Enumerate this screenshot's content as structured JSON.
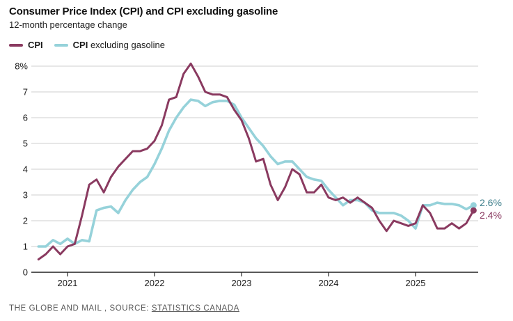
{
  "title": "Consumer Price Index (CPI) and CPI excluding gasoline",
  "subtitle": "12-month percentage change",
  "legend": {
    "items": [
      {
        "label_bold": "CPI",
        "label_rest": "",
        "color": "#8a3a60"
      },
      {
        "label_bold": "CPI",
        "label_rest": " excluding gasoline",
        "color": "#96d2da"
      }
    ]
  },
  "footer": {
    "prefix": "THE GLOBE AND MAIL , SOURCE: ",
    "source_link": "STATISTICS CANADA"
  },
  "chart_data": {
    "type": "line",
    "title": "Consumer Price Index (CPI) and CPI excluding gasoline",
    "subtitle": "12-month percentage change",
    "x_unit": "month",
    "x_start": "2020-09",
    "x_end": "2025-09",
    "x_tick_labels": [
      "2021",
      "2022",
      "2023",
      "2024",
      "2025"
    ],
    "x_tick_month_index": [
      4,
      16,
      28,
      40,
      52
    ],
    "y_ticks": [
      0,
      1,
      2,
      3,
      4,
      5,
      6,
      7,
      8
    ],
    "y_tick_top_label": "8%",
    "ylim": [
      0,
      8.4
    ],
    "grid": "horizontal",
    "legend_position": "top-left",
    "colors": {
      "cpi": "#8a3a60",
      "cpi_ex_gasoline": "#96d2da",
      "annotation_teal_text": "#3f7f8c",
      "annotation_maroon_text": "#8a3a60",
      "gridline": "#cfcfcf",
      "axis": "#222222"
    },
    "series": [
      {
        "name": "CPI",
        "color": "#8a3a60",
        "values": [
          0.5,
          0.7,
          1.0,
          0.7,
          1.0,
          1.1,
          2.2,
          3.4,
          3.6,
          3.1,
          3.7,
          4.1,
          4.4,
          4.7,
          4.7,
          4.8,
          5.1,
          5.7,
          6.7,
          6.8,
          7.7,
          8.1,
          7.6,
          7.0,
          6.9,
          6.9,
          6.8,
          6.3,
          5.9,
          5.2,
          4.3,
          4.4,
          3.4,
          2.8,
          3.3,
          4.0,
          3.8,
          3.1,
          3.1,
          3.4,
          2.9,
          2.8,
          2.9,
          2.7,
          2.9,
          2.7,
          2.5,
          2.0,
          1.6,
          2.0,
          1.9,
          1.8,
          1.9,
          2.6,
          2.3,
          1.7,
          1.7,
          1.9,
          1.7,
          1.9,
          2.4
        ]
      },
      {
        "name": "CPI excluding gasoline",
        "color": "#96d2da",
        "values": [
          1.0,
          1.0,
          1.25,
          1.1,
          1.3,
          1.1,
          1.25,
          1.2,
          2.4,
          2.5,
          2.55,
          2.3,
          2.8,
          3.2,
          3.5,
          3.7,
          4.2,
          4.8,
          5.5,
          6.0,
          6.4,
          6.7,
          6.65,
          6.45,
          6.6,
          6.65,
          6.65,
          6.5,
          6.0,
          5.6,
          5.2,
          4.9,
          4.5,
          4.2,
          4.3,
          4.3,
          4.0,
          3.7,
          3.6,
          3.55,
          3.2,
          2.9,
          2.6,
          2.8,
          2.8,
          2.7,
          2.4,
          2.3,
          2.3,
          2.3,
          2.2,
          2.0,
          1.7,
          2.6,
          2.6,
          2.7,
          2.65,
          2.65,
          2.6,
          2.45,
          2.6
        ]
      }
    ],
    "end_annotations": [
      {
        "text": "2.6%",
        "series": "CPI excluding gasoline",
        "color": "#3f7f8c"
      },
      {
        "text": "2.4%",
        "series": "CPI",
        "color": "#8a3a60"
      }
    ]
  }
}
